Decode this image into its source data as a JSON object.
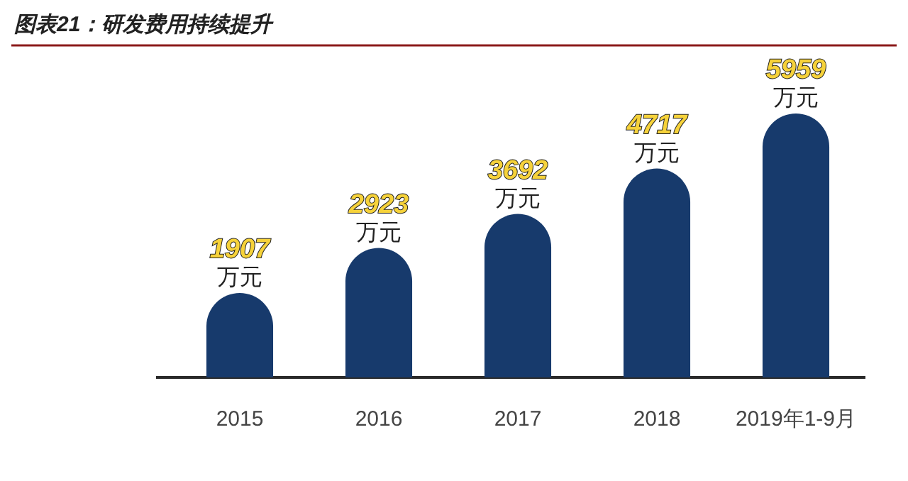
{
  "chart_data": {
    "type": "bar",
    "title": "图表21：研发费用持续提升",
    "categories": [
      "2015",
      "2016",
      "2017",
      "2018",
      "2019年1-9月"
    ],
    "values": [
      1907,
      2923,
      3692,
      4717,
      5959
    ],
    "color": "#173a6c",
    "value_labels": [
      "1907\n万元",
      "2923\n万元",
      "3692\n万元",
      "4717\n万元",
      "5959\n万元"
    ]
  }
}
